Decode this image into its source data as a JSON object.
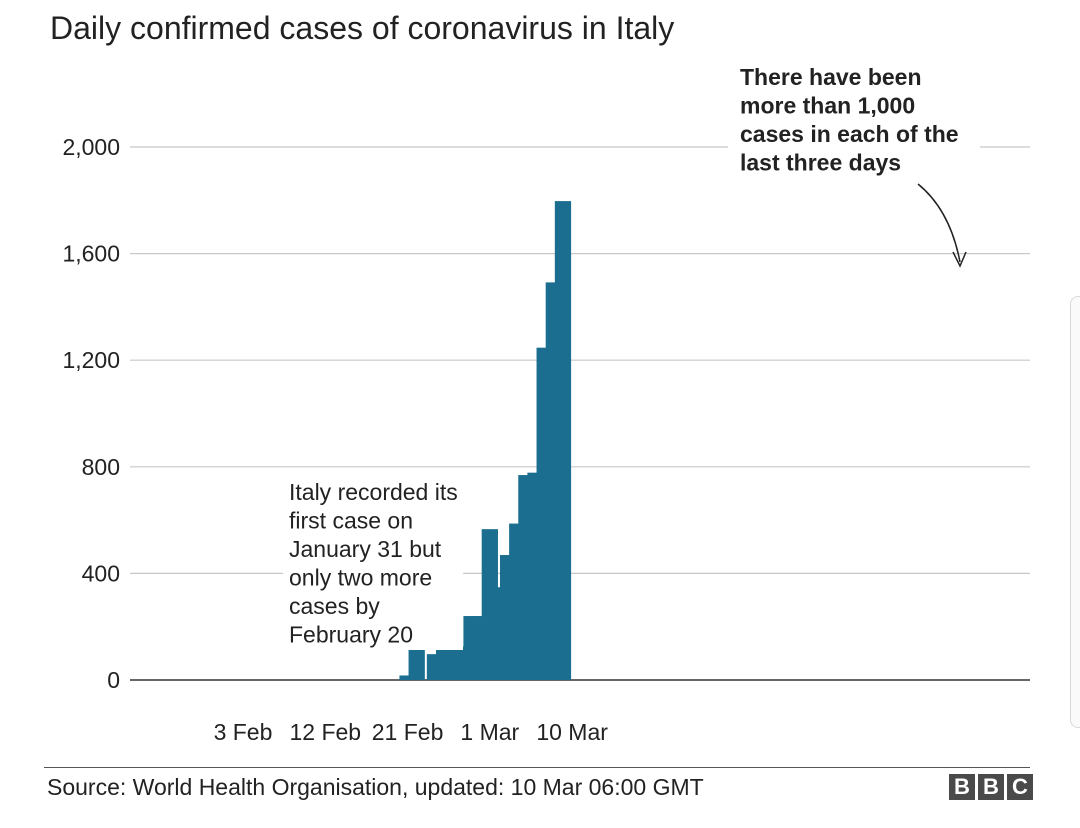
{
  "chart_data": {
    "type": "bar",
    "title": "Daily confirmed cases of coronavirus in Italy",
    "xlabel": "",
    "ylabel": "",
    "ylim": [
      0,
      2000
    ],
    "y_ticks": [
      0,
      400,
      800,
      1200,
      1600,
      2000
    ],
    "y_tick_labels": [
      "0",
      "400",
      "800",
      "1,200",
      "1,600",
      "2,000"
    ],
    "x_tick_labels": [
      "3 Feb",
      "12 Feb",
      "21 Feb",
      "1 Mar",
      "10 Mar"
    ],
    "x_tick_dates": [
      "2020-02-03",
      "2020-02-12",
      "2020-02-21",
      "2020-03-01",
      "2020-03-10"
    ],
    "grid": true,
    "color": "#1b6e8f",
    "dates": [
      "2020-02-21",
      "2020-02-22",
      "2020-02-23",
      "2020-02-24",
      "2020-02-25",
      "2020-02-26",
      "2020-02-27",
      "2020-02-28",
      "2020-02-29",
      "2020-03-01",
      "2020-03-02",
      "2020-03-03",
      "2020-03-04",
      "2020-03-05",
      "2020-03-06",
      "2020-03-07",
      "2020-03-08",
      "2020-03-09",
      "2020-03-10"
    ],
    "values": [
      17,
      124,
      0,
      97,
      145,
      157,
      126,
      240,
      240,
      566,
      348,
      469,
      587,
      769,
      778,
      1247,
      1492,
      1797,
      0
    ],
    "annotations": [
      {
        "text": "Italy recorded its first case on January 31 but only two more cases by February 20"
      },
      {
        "text": "There have been more than 1,000 cases in each of the last three days"
      }
    ]
  },
  "footer": {
    "source": "Source: World Health Organisation, updated: 10 Mar 06:00 GMT",
    "logo_letters": [
      "B",
      "B",
      "C"
    ]
  }
}
